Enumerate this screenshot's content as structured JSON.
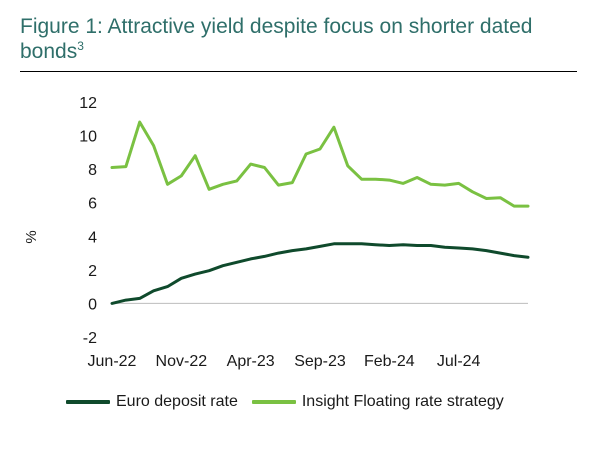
{
  "figure": {
    "title": "Figure 1: Attractive yield despite focus on shorter dated bonds",
    "title_sup": "3"
  },
  "chart_data": {
    "type": "line",
    "ylabel": "%",
    "xlabel": "",
    "ylim": [
      -2,
      12
    ],
    "yticks": [
      -2,
      0,
      2,
      4,
      6,
      8,
      10,
      12
    ],
    "grid": false,
    "legend": "bottom",
    "x_labels": [
      "Jun-22",
      "Nov-22",
      "Apr-23",
      "Sep-23",
      "Feb-24",
      "Jul-24"
    ],
    "x_label_months": [
      0,
      5,
      10,
      15,
      20,
      25
    ],
    "x_months": [
      0,
      30
    ],
    "series": [
      {
        "name": "Euro deposit rate",
        "color": "#0f4a2c",
        "x": [
          0,
          1,
          2,
          3,
          4,
          5,
          6,
          7,
          8,
          9,
          10,
          11,
          12,
          13,
          14,
          15,
          16,
          17,
          18,
          19,
          20,
          21,
          22,
          23,
          24,
          25,
          26,
          27,
          28,
          29,
          30
        ],
        "values": [
          0,
          0.2,
          0.3,
          0.75,
          1.0,
          1.5,
          1.75,
          1.95,
          2.25,
          2.45,
          2.65,
          2.8,
          3.0,
          3.15,
          3.25,
          3.4,
          3.55,
          3.55,
          3.55,
          3.5,
          3.45,
          3.5,
          3.45,
          3.45,
          3.35,
          3.3,
          3.25,
          3.15,
          3.0,
          2.85,
          2.75
        ]
      },
      {
        "name": "Insight Floating rate strategy",
        "color": "#7ac142",
        "x": [
          0,
          1,
          2,
          3,
          4,
          5,
          6,
          7,
          8,
          9,
          10,
          11,
          12,
          13,
          14,
          15,
          16,
          17,
          18,
          19,
          20,
          21,
          22,
          23,
          24,
          25,
          26,
          27,
          28,
          29,
          30
        ],
        "values": [
          8.1,
          8.15,
          10.8,
          9.4,
          7.1,
          7.6,
          8.8,
          6.8,
          7.1,
          7.3,
          8.3,
          8.1,
          7.05,
          7.2,
          8.9,
          9.2,
          10.5,
          8.2,
          7.4,
          7.4,
          7.35,
          7.15,
          7.5,
          7.1,
          7.05,
          7.15,
          6.65,
          6.25,
          6.3,
          5.8,
          5.8
        ]
      }
    ]
  }
}
